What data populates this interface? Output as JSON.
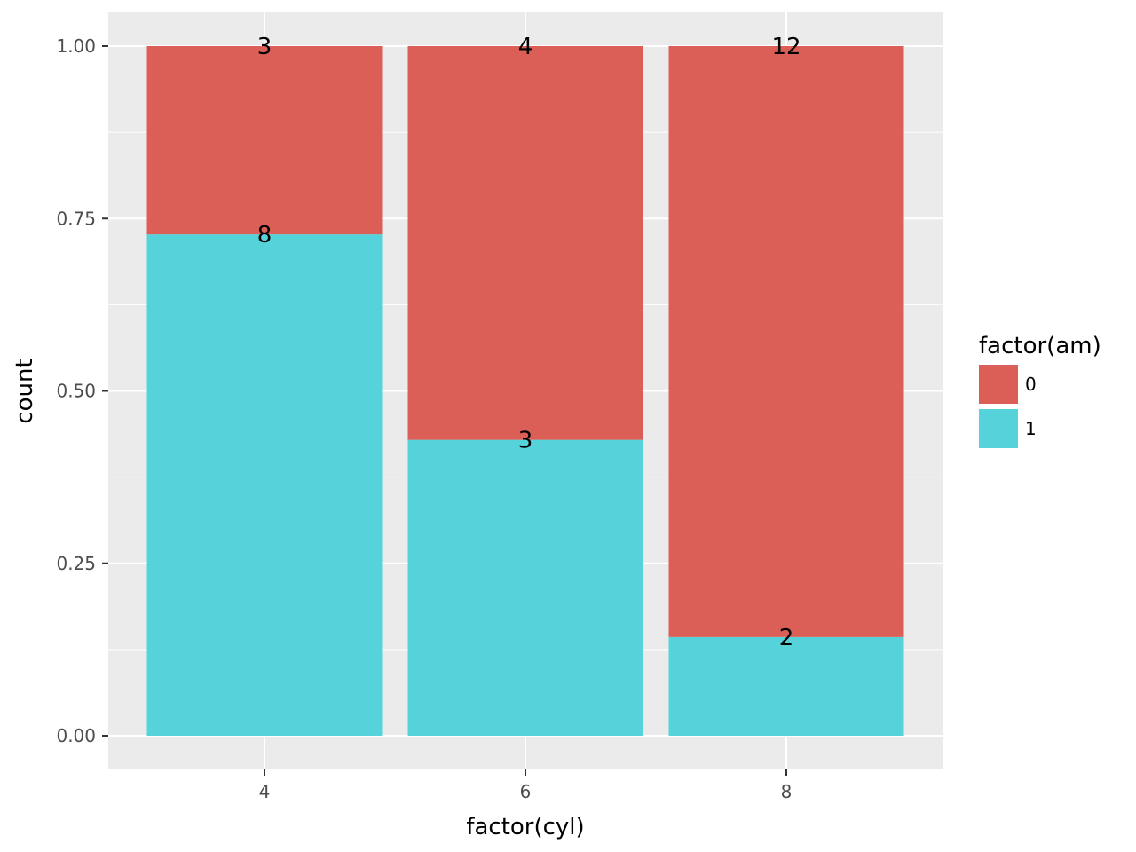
{
  "chart_data": {
    "type": "bar",
    "stacked": "fill",
    "title": "",
    "xlabel": "factor(cyl)",
    "ylabel": "count",
    "categories": [
      "4",
      "6",
      "8"
    ],
    "ylim": [
      0,
      1
    ],
    "y_ticks": [
      "0.00",
      "0.25",
      "0.50",
      "0.75",
      "1.00"
    ],
    "grid": true,
    "legend": {
      "title": "factor(am)",
      "position": "right"
    },
    "series": [
      {
        "name": "0",
        "color": "#dc5f57",
        "counts": [
          3,
          4,
          12
        ],
        "fractions": [
          0.273,
          0.571,
          0.857
        ]
      },
      {
        "name": "1",
        "color": "#56d3da",
        "counts": [
          8,
          3,
          2
        ],
        "fractions": [
          0.727,
          0.429,
          0.143
        ]
      }
    ],
    "stack_order": [
      "1",
      "0"
    ]
  }
}
